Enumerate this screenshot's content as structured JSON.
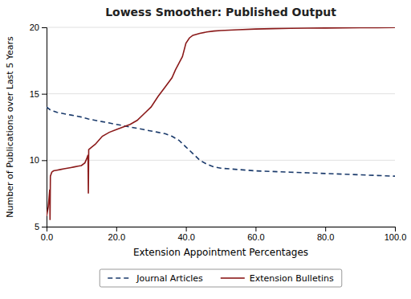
{
  "chart_data": {
    "type": "line",
    "title": "Lowess Smoother: Published Output",
    "x_label": "Extension Appointment Percentages",
    "y_label": "Number of Publications over Last 5 Years",
    "xlim": [
      0,
      100
    ],
    "ylim": [
      5,
      20
    ],
    "xticks": [
      {
        "value": 0.0,
        "label": "0.0"
      },
      {
        "value": 20.0,
        "label": "20.0"
      },
      {
        "value": 40.0,
        "label": "40.0"
      },
      {
        "value": 60.0,
        "label": "60.0"
      },
      {
        "value": 80.0,
        "label": "80.0"
      },
      {
        "value": 100.0,
        "label": "100.0"
      }
    ],
    "yticks": [
      5,
      10,
      15,
      20
    ],
    "grid": true,
    "legend": "bottom",
    "series": [
      {
        "name": "Journal Articles",
        "color": "#1a3a6b",
        "line_style": "dashed",
        "x": [
          0,
          1,
          2,
          3,
          4,
          5,
          6,
          7,
          8,
          9,
          10,
          12,
          14,
          16,
          18,
          20,
          22,
          24,
          26,
          28,
          30,
          32,
          34,
          36,
          38,
          40,
          42,
          44,
          46,
          48,
          50,
          55,
          60,
          65,
          70,
          75,
          80,
          85,
          90,
          95,
          100
        ],
        "values": [
          14.0,
          13.8,
          13.7,
          13.6,
          13.55,
          13.5,
          13.45,
          13.4,
          13.35,
          13.3,
          13.25,
          13.1,
          13.0,
          12.9,
          12.8,
          12.7,
          12.6,
          12.5,
          12.4,
          12.3,
          12.2,
          12.1,
          12.0,
          11.8,
          11.5,
          11.0,
          10.5,
          10.0,
          9.7,
          9.5,
          9.4,
          9.3,
          9.2,
          9.15,
          9.1,
          9.05,
          9.0,
          8.95,
          8.9,
          8.85,
          8.8
        ]
      },
      {
        "name": "Extension Bulletins",
        "color": "#8b1a1a",
        "line_style": "solid",
        "x": [
          0.0,
          0.5,
          0.9,
          1.0,
          1.1,
          1.5,
          2.0,
          3.0,
          4.0,
          5.0,
          6.0,
          7.0,
          8.0,
          9.0,
          10.0,
          11.0,
          11.5,
          11.9,
          12.0,
          12.1,
          13.0,
          14.0,
          15.0,
          16.0,
          18.0,
          20.0,
          22.0,
          24.0,
          26.0,
          28.0,
          30.0,
          32.0,
          34.0,
          36.0,
          37.0,
          38.0,
          39.0,
          40.0,
          41.0,
          42.0,
          44.0,
          46.0,
          48.0,
          50.0,
          55.0,
          60.0,
          65.0,
          70.0,
          75.0,
          80.0,
          85.0,
          90.0,
          95.0,
          100.0
        ],
        "values": [
          5.8,
          6.5,
          7.8,
          5.5,
          8.8,
          9.1,
          9.2,
          9.25,
          9.3,
          9.35,
          9.4,
          9.45,
          9.5,
          9.55,
          9.6,
          9.8,
          10.1,
          10.4,
          7.5,
          10.8,
          11.0,
          11.2,
          11.5,
          11.8,
          12.1,
          12.3,
          12.5,
          12.7,
          13.0,
          13.5,
          14.0,
          14.8,
          15.5,
          16.2,
          16.8,
          17.3,
          17.8,
          18.8,
          19.2,
          19.4,
          19.55,
          19.65,
          19.72,
          19.76,
          19.82,
          19.87,
          19.9,
          19.92,
          19.94,
          19.95,
          19.96,
          19.97,
          19.98,
          19.99
        ]
      }
    ]
  }
}
